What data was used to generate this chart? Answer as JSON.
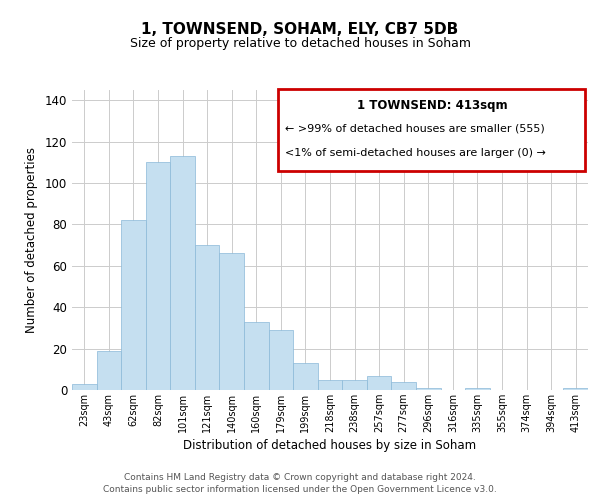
{
  "title": "1, TOWNSEND, SOHAM, ELY, CB7 5DB",
  "subtitle": "Size of property relative to detached houses in Soham",
  "xlabel": "Distribution of detached houses by size in Soham",
  "ylabel": "Number of detached properties",
  "bar_color": "#c5dff0",
  "bar_edge_color": "#8ab8d8",
  "categories": [
    "23sqm",
    "43sqm",
    "62sqm",
    "82sqm",
    "101sqm",
    "121sqm",
    "140sqm",
    "160sqm",
    "179sqm",
    "199sqm",
    "218sqm",
    "238sqm",
    "257sqm",
    "277sqm",
    "296sqm",
    "316sqm",
    "335sqm",
    "355sqm",
    "374sqm",
    "394sqm",
    "413sqm"
  ],
  "values": [
    3,
    19,
    82,
    110,
    113,
    70,
    66,
    33,
    29,
    13,
    5,
    5,
    7,
    4,
    1,
    0,
    1,
    0,
    0,
    0,
    1
  ],
  "ylim": [
    0,
    145
  ],
  "yticks": [
    0,
    20,
    40,
    60,
    80,
    100,
    120,
    140
  ],
  "legend_title": "1 TOWNSEND: 413sqm",
  "legend_line1": "← >99% of detached houses are smaller (555)",
  "legend_line2": "<1% of semi-detached houses are larger (0) →",
  "legend_box_color": "#ffffff",
  "legend_border_color": "#cc0000",
  "footer_line1": "Contains HM Land Registry data © Crown copyright and database right 2024.",
  "footer_line2": "Contains public sector information licensed under the Open Government Licence v3.0.",
  "grid_color": "#cccccc",
  "background_color": "#ffffff"
}
